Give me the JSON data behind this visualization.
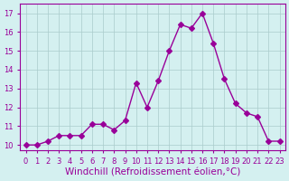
{
  "x": [
    0,
    1,
    2,
    3,
    4,
    5,
    6,
    7,
    8,
    9,
    10,
    11,
    12,
    13,
    14,
    15,
    16,
    17,
    18,
    19,
    20,
    21,
    22,
    23
  ],
  "y": [
    10.0,
    10.0,
    10.2,
    10.5,
    10.5,
    10.5,
    11.1,
    11.1,
    10.8,
    11.3,
    13.3,
    12.0,
    13.4,
    15.0,
    16.4,
    16.2,
    17.0,
    15.4,
    13.5,
    12.2,
    11.7,
    11.5,
    10.2,
    10.2
  ],
  "line_color": "#990099",
  "marker": "D",
  "marker_size": 3,
  "bg_color": "#d4f0f0",
  "grid_color": "#aacccc",
  "xlabel": "Windchill (Refroidissement éolien,°C)",
  "xlabel_fontsize": 7.5,
  "tick_fontsize": 6.0,
  "ylabel_ticks": [
    10,
    11,
    12,
    13,
    14,
    15,
    16,
    17
  ],
  "ylim": [
    9.7,
    17.5
  ],
  "xlim": [
    -0.5,
    23.5
  ],
  "xtick_labels": [
    "0",
    "1",
    "2",
    "3",
    "4",
    "5",
    "6",
    "7",
    "8",
    "9",
    "10",
    "11",
    "12",
    "13",
    "14",
    "15",
    "16",
    "17",
    "18",
    "19",
    "20",
    "21",
    "22",
    "23"
  ]
}
